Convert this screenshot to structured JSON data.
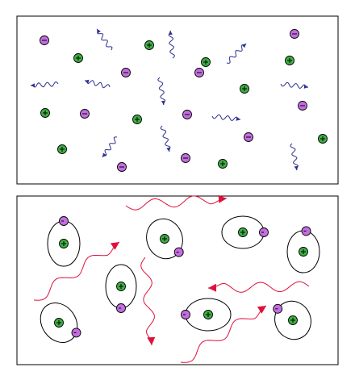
{
  "colors": {
    "positive_ion": "#3cb043",
    "electron": "#c36ee0",
    "photon_plasma": "#2b2f8f",
    "photon_atoms": "#e0103a",
    "particle_outline": "#000000"
  },
  "legend_glyphs": {
    "positive_sign": "+",
    "negative_sign": "−"
  },
  "panels": [
    {
      "name": "plasma-panel",
      "state": "ionized"
    },
    {
      "name": "atoms-panel",
      "state": "neutral-atoms"
    }
  ]
}
